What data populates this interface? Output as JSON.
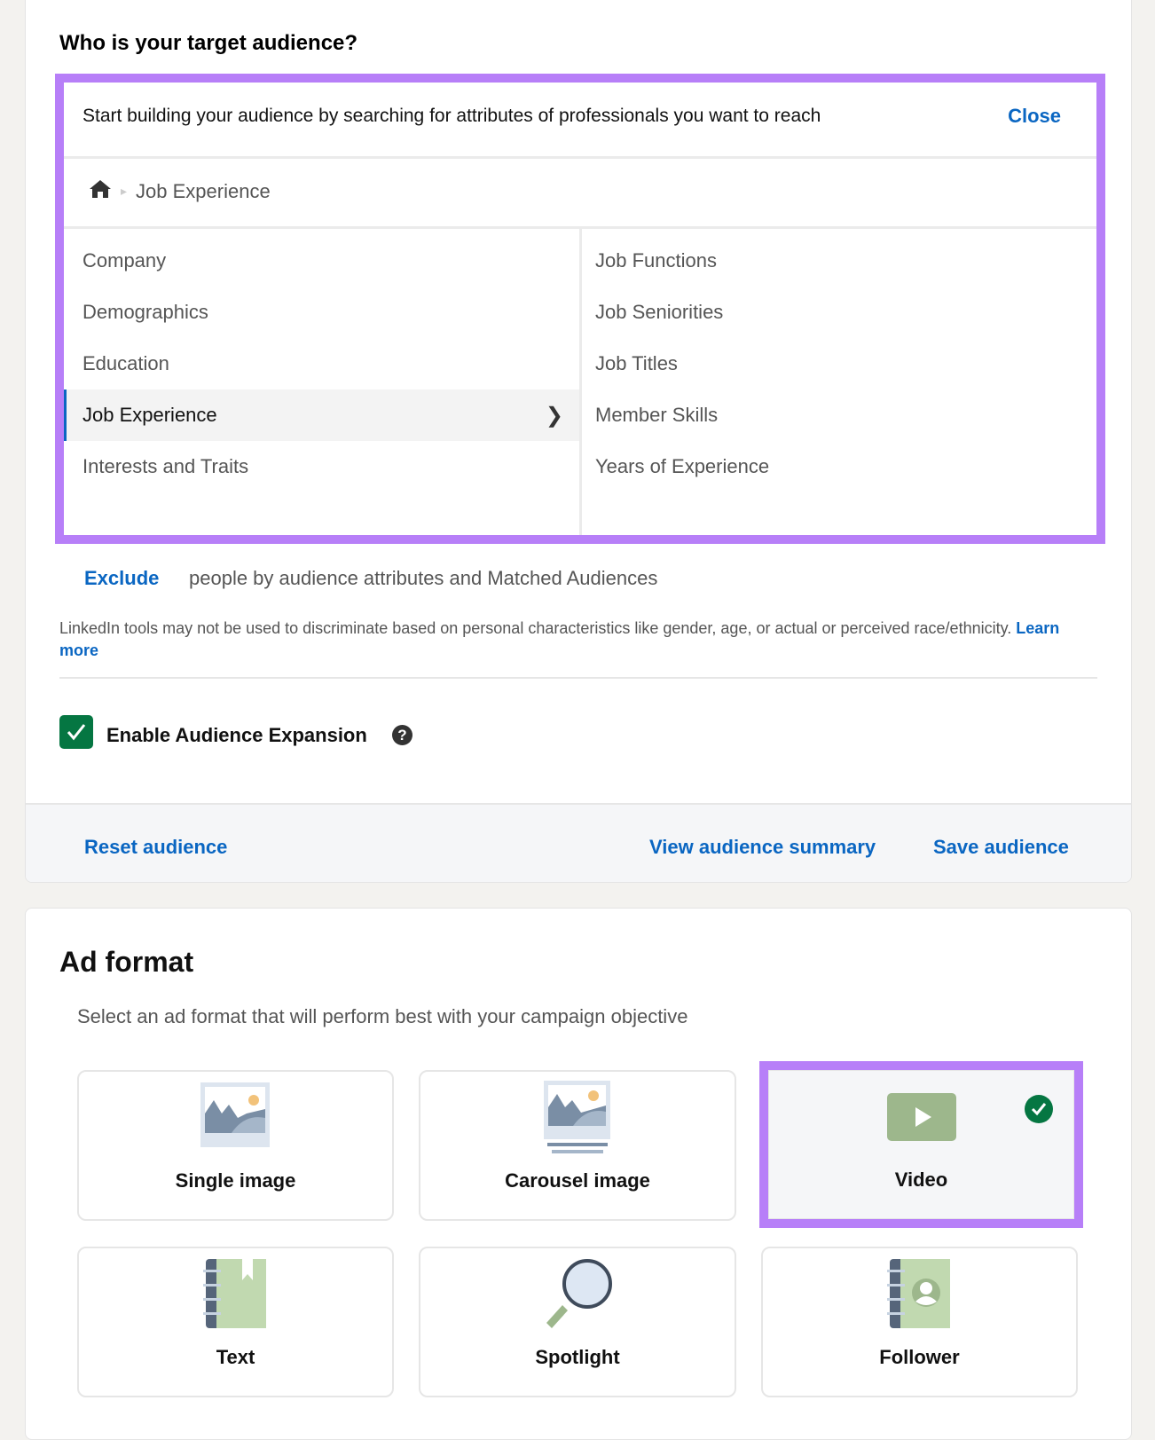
{
  "audience": {
    "title": "Who is your target audience?",
    "prompt": "Start building your audience by searching for attributes of professionals you want to reach",
    "close_label": "Close",
    "breadcrumb": {
      "home_icon": "home-icon",
      "current": "Job Experience"
    },
    "categories": [
      {
        "label": "Company"
      },
      {
        "label": "Demographics"
      },
      {
        "label": "Education"
      },
      {
        "label": "Job Experience",
        "selected": true
      },
      {
        "label": "Interests and Traits"
      }
    ],
    "subcategories": [
      {
        "label": "Job Functions"
      },
      {
        "label": "Job Seniorities"
      },
      {
        "label": "Job Titles"
      },
      {
        "label": "Member Skills"
      },
      {
        "label": "Years of Experience"
      }
    ],
    "exclude_label": "Exclude",
    "exclude_text": "people by audience attributes and Matched Audiences",
    "disclaimer": "LinkedIn tools may not be used to discriminate based on personal characteristics like gender, age, or actual or perceived race/ethnicity.",
    "learn_more": "Learn more",
    "expansion_label": "Enable Audience Expansion",
    "expansion_checked": true,
    "footer": {
      "reset": "Reset audience",
      "summary": "View audience summary",
      "save": "Save audience"
    }
  },
  "ad_format": {
    "title": "Ad format",
    "subtitle": "Select an ad format that will perform best with your campaign objective",
    "options": [
      {
        "label": "Single image",
        "icon": "image-icon"
      },
      {
        "label": "Carousel image",
        "icon": "carousel-icon"
      },
      {
        "label": "Video",
        "icon": "video-play-icon",
        "selected": true
      },
      {
        "label": "Text",
        "icon": "notebook-icon"
      },
      {
        "label": "Spotlight",
        "icon": "magnifier-icon"
      },
      {
        "label": "Follower",
        "icon": "contact-book-icon"
      }
    ]
  },
  "colors": {
    "accent": "#0a66c2",
    "highlight": "#b77ff8",
    "check": "#057642"
  }
}
